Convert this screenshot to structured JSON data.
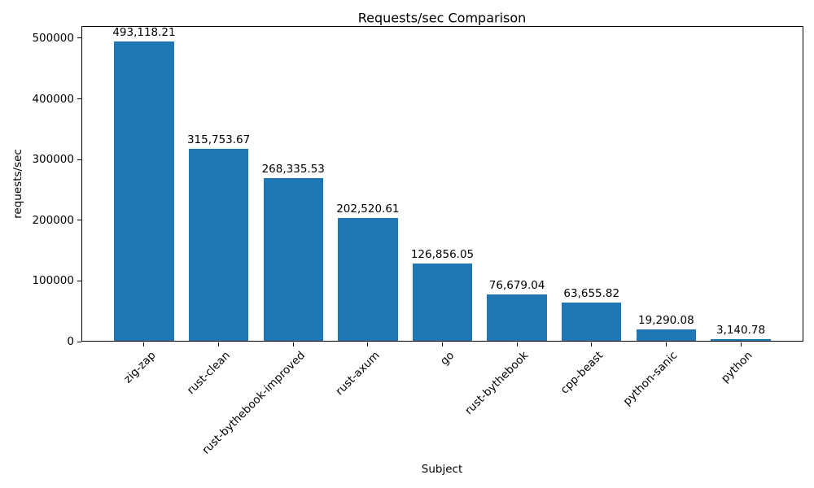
{
  "chart_data": {
    "type": "bar",
    "title": "Requests/sec Comparison",
    "xlabel": "Subject",
    "ylabel": "requests/sec",
    "categories": [
      "zig-zap",
      "rust-clean",
      "rust-bythebook-improved",
      "rust-axum",
      "go",
      "rust-bythebook",
      "cpp-beast",
      "python-sanic",
      "python"
    ],
    "values": [
      493118.21,
      315753.67,
      268335.53,
      202520.61,
      126856.05,
      76679.04,
      63655.82,
      19290.08,
      3140.78
    ],
    "value_labels": [
      "493,118.21",
      "315,753.67",
      "268,335.53",
      "202,520.61",
      "126,856.05",
      "76,679.04",
      "63,655.82",
      "19,290.08",
      "3,140.78"
    ],
    "yticks": [
      0,
      100000,
      200000,
      300000,
      400000,
      500000
    ],
    "ytick_labels": [
      "0",
      "100000",
      "200000",
      "300000",
      "400000",
      "500000"
    ],
    "ylim": [
      0,
      520000
    ],
    "bar_color": "#1f77b4",
    "text_color": "#000000",
    "grid": false,
    "legend": false
  }
}
